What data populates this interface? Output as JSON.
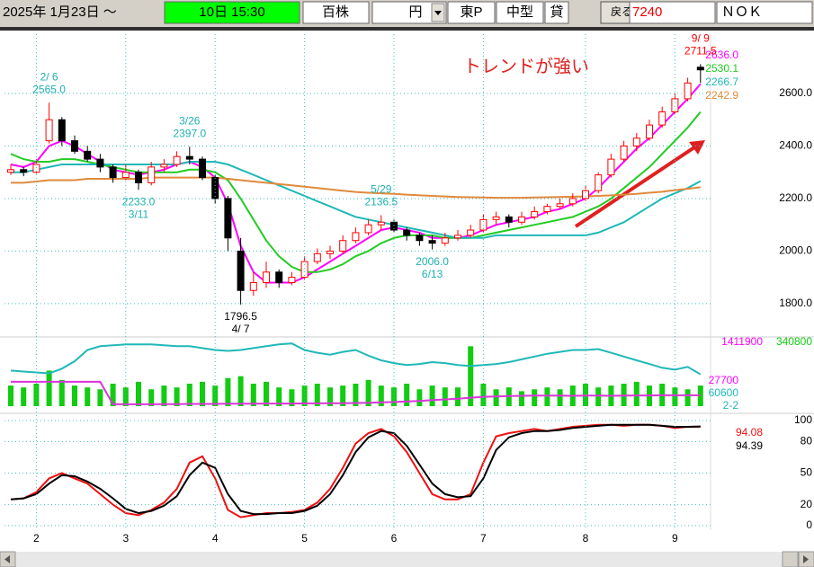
{
  "toolbar": {
    "date": "2025年 1月23日 ～",
    "period": "10日 15:30",
    "unit": "百株",
    "currency": "円",
    "market": "東P",
    "size": "中型",
    "lending": "貸",
    "back": "戻る",
    "code": "7240",
    "name": "ＮＯＫ"
  },
  "chart_data": [
    {
      "type": "candlestick",
      "open": [
        2300,
        2310,
        2300,
        2420,
        2500,
        2420,
        2380,
        2350,
        2320,
        2280,
        2300,
        2260,
        2320,
        2330,
        2360,
        2350,
        2280,
        2200,
        2000,
        1850,
        1880,
        1920,
        1880,
        1900,
        1960,
        1990,
        2000,
        2040,
        2070,
        2100,
        2110,
        2080,
        2060,
        2040,
        2030,
        2050,
        2060,
        2080,
        2120,
        2130,
        2110,
        2130,
        2150,
        2170,
        2180,
        2200,
        2230,
        2290,
        2350,
        2400,
        2430,
        2480,
        2530,
        2580,
        2700
      ],
      "high": [
        2330,
        2320,
        2350,
        2565,
        2510,
        2440,
        2400,
        2370,
        2330,
        2330,
        2310,
        2340,
        2350,
        2380,
        2397,
        2360,
        2290,
        2210,
        2050,
        1920,
        1960,
        1930,
        1920,
        1980,
        2010,
        2020,
        2060,
        2090,
        2120,
        2136.5,
        2120,
        2090,
        2070,
        2060,
        2070,
        2080,
        2100,
        2140,
        2150,
        2140,
        2150,
        2170,
        2180,
        2200,
        2220,
        2250,
        2300,
        2370,
        2420,
        2450,
        2500,
        2550,
        2600,
        2660,
        2711.5
      ],
      "low": [
        2290,
        2285,
        2295,
        2410,
        2400,
        2370,
        2340,
        2300,
        2260,
        2270,
        2233,
        2250,
        2300,
        2320,
        2330,
        2270,
        2180,
        2000,
        1796.5,
        1830,
        1860,
        1860,
        1870,
        1890,
        1950,
        1970,
        1990,
        2030,
        2060,
        2080,
        2070,
        2040,
        2020,
        2006,
        2020,
        2040,
        2050,
        2070,
        2100,
        2090,
        2100,
        2120,
        2140,
        2160,
        2170,
        2190,
        2220,
        2280,
        2340,
        2380,
        2420,
        2470,
        2520,
        2570,
        2640
      ],
      "close": [
        2310,
        2300,
        2330,
        2500,
        2420,
        2380,
        2350,
        2320,
        2280,
        2300,
        2260,
        2320,
        2330,
        2360,
        2350,
        2280,
        2200,
        2050,
        1850,
        1880,
        1920,
        1880,
        1900,
        1960,
        1990,
        2000,
        2040,
        2070,
        2100,
        2110,
        2080,
        2060,
        2040,
        2030,
        2050,
        2060,
        2080,
        2120,
        2130,
        2110,
        2130,
        2150,
        2170,
        2180,
        2200,
        2230,
        2290,
        2350,
        2400,
        2430,
        2480,
        2530,
        2580,
        2640,
        2690
      ],
      "up_color": "#ff0000",
      "down_color": "#000000",
      "series": [
        {
          "name": "2636.0",
          "color": "#ff00ff",
          "values": [
            2330,
            2320,
            2340,
            2400,
            2420,
            2400,
            2370,
            2340,
            2310,
            2300,
            2290,
            2300,
            2310,
            2330,
            2340,
            2320,
            2280,
            2180,
            2020,
            1920,
            1880,
            1880,
            1880,
            1900,
            1930,
            1960,
            1990,
            2020,
            2050,
            2080,
            2090,
            2080,
            2070,
            2050,
            2050,
            2050,
            2060,
            2080,
            2100,
            2110,
            2120,
            2130,
            2150,
            2160,
            2180,
            2200,
            2240,
            2290,
            2340,
            2390,
            2430,
            2480,
            2530,
            2580,
            2636
          ]
        },
        {
          "name": "2530.1",
          "color": "#22cc22",
          "values": [
            2370,
            2350,
            2340,
            2340,
            2350,
            2350,
            2340,
            2330,
            2320,
            2310,
            2300,
            2300,
            2300,
            2300,
            2310,
            2310,
            2300,
            2270,
            2200,
            2120,
            2040,
            1980,
            1940,
            1920,
            1920,
            1930,
            1950,
            1980,
            2000,
            2030,
            2050,
            2060,
            2060,
            2060,
            2050,
            2050,
            2050,
            2060,
            2070,
            2080,
            2090,
            2100,
            2110,
            2120,
            2130,
            2150,
            2170,
            2200,
            2240,
            2280,
            2320,
            2370,
            2420,
            2470,
            2530.1
          ]
        },
        {
          "name": "2266.7",
          "color": "#20b8b8",
          "values": [
            2300,
            2300,
            2310,
            2320,
            2330,
            2330,
            2330,
            2330,
            2330,
            2330,
            2330,
            2330,
            2330,
            2330,
            2340,
            2340,
            2340,
            2330,
            2310,
            2290,
            2270,
            2250,
            2230,
            2210,
            2190,
            2170,
            2150,
            2130,
            2120,
            2110,
            2100,
            2090,
            2080,
            2070,
            2060,
            2050,
            2050,
            2050,
            2060,
            2060,
            2060,
            2060,
            2060,
            2060,
            2060,
            2060,
            2070,
            2090,
            2110,
            2140,
            2170,
            2200,
            2220,
            2240,
            2266.7
          ]
        },
        {
          "name": "2242.9",
          "color": "#e08a3c",
          "values": [
            2260,
            2260,
            2265,
            2270,
            2270,
            2270,
            2275,
            2275,
            2275,
            2275,
            2275,
            2280,
            2280,
            2280,
            2280,
            2280,
            2280,
            2275,
            2270,
            2265,
            2260,
            2255,
            2250,
            2245,
            2240,
            2235,
            2230,
            2225,
            2222,
            2220,
            2218,
            2215,
            2212,
            2210,
            2208,
            2206,
            2205,
            2204,
            2203,
            2203,
            2203,
            2204,
            2205,
            2206,
            2207,
            2208,
            2210,
            2212,
            2215,
            2218,
            2222,
            2226,
            2232,
            2237,
            2242.9
          ]
        }
      ],
      "ylim": [
        1690,
        2826
      ],
      "yticks": [
        {
          "value": 1800,
          "label": "1800.0"
        },
        {
          "value": 2000,
          "label": "2000.0"
        },
        {
          "value": 2200,
          "label": "2200.0"
        },
        {
          "value": 2400,
          "label": "2400.0"
        },
        {
          "value": 2600,
          "label": "2600.0"
        }
      ],
      "grid": true,
      "annotations": [
        {
          "date": "2/ 6",
          "value": 2565,
          "value_label": "2565.0",
          "color": "#20b0b0"
        },
        {
          "date": "3/11",
          "value": 2233,
          "value_label": "2233.0",
          "color": "#20b0b0"
        },
        {
          "date": "3/26",
          "value": 2397,
          "value_label": "2397.0",
          "color": "#20b0b0"
        },
        {
          "date": "4/ 7",
          "value": 1796.5,
          "value_label": "1796.5",
          "color": "#000000"
        },
        {
          "date": "5/29",
          "value": 2136.5,
          "value_label": "2136.5",
          "color": "#20b0b0"
        },
        {
          "date": "6/13",
          "value": 2006,
          "value_label": "2006.0",
          "color": "#20b0b0"
        },
        {
          "date": "9/ 9",
          "value": 2711.5,
          "value_label": "2711.5",
          "color": "#ff0000"
        }
      ],
      "note": "トレンドが強い"
    },
    {
      "type": "bar",
      "values": [
        110000,
        100000,
        120000,
        190000,
        140000,
        110000,
        100000,
        90000,
        120000,
        100000,
        130000,
        90000,
        110000,
        100000,
        120000,
        130000,
        110000,
        150000,
        160000,
        120000,
        130000,
        100000,
        90000,
        110000,
        120000,
        100000,
        110000,
        120000,
        140000,
        110000,
        100000,
        120000,
        90000,
        110000,
        100000,
        100000,
        320000,
        120000,
        90000,
        100000,
        80000,
        90000,
        100000,
        90000,
        110000,
        120000,
        100000,
        110000,
        120000,
        130000,
        110000,
        120000,
        100000,
        90000,
        110000
      ],
      "color": "#11cc11",
      "series": [
        {
          "color": "#20b8b8",
          "values": [
            190000,
            185000,
            180000,
            175000,
            200000,
            240000,
            300000,
            320000,
            325000,
            330000,
            330000,
            330000,
            325000,
            320000,
            320000,
            310000,
            300000,
            295000,
            300000,
            310000,
            320000,
            330000,
            335000,
            300000,
            285000,
            275000,
            290000,
            300000,
            270000,
            245000,
            230000,
            220000,
            225000,
            235000,
            230000,
            220000,
            215000,
            220000,
            225000,
            235000,
            250000,
            265000,
            280000,
            290000,
            300000,
            300000,
            305000,
            285000,
            265000,
            245000,
            225000,
            205000,
            195000,
            210000,
            170000
          ]
        },
        {
          "color": "#dd33dd",
          "values": [
            130000,
            130000,
            130000,
            130000,
            130000,
            130000,
            130000,
            130000,
            10000,
            10000,
            10000,
            10000,
            11000,
            11000,
            12000,
            12000,
            12000,
            13000,
            13000,
            13000,
            14000,
            14000,
            14000,
            15000,
            15000,
            16000,
            16000,
            17000,
            18000,
            20000,
            22000,
            25000,
            28000,
            32000,
            36000,
            40000,
            45000,
            50000,
            52000,
            54000,
            55000,
            56000,
            56000,
            56000,
            55000,
            56000,
            56000,
            55000,
            56000,
            57000,
            57000,
            58000,
            58000,
            58000,
            58000
          ]
        }
      ],
      "ylim": [
        0,
        340800
      ],
      "yticks": [
        340800
      ],
      "scale_labels": [
        {
          "text": "1411900",
          "color": "#ff00ff"
        },
        {
          "text": "27700",
          "color": "#ff00ff"
        },
        {
          "text": "60600",
          "color": "#20b8b8"
        },
        {
          "text": "2-2",
          "color": "#20b8b8"
        }
      ]
    },
    {
      "type": "line",
      "categories": [
        null,
        null,
        "2",
        null,
        null,
        null,
        null,
        null,
        null,
        "3",
        null,
        null,
        null,
        null,
        null,
        null,
        "4",
        null,
        null,
        null,
        null,
        null,
        null,
        "5",
        null,
        null,
        null,
        null,
        null,
        null,
        "6",
        null,
        null,
        null,
        null,
        null,
        null,
        "7",
        null,
        null,
        null,
        null,
        null,
        null,
        null,
        "8",
        null,
        null,
        null,
        null,
        null,
        null,
        "9",
        null,
        null
      ],
      "series": [
        {
          "name": "94.08",
          "color": "#ee1111",
          "values": [
            25,
            26,
            32,
            45,
            50,
            45,
            40,
            30,
            20,
            12,
            10,
            15,
            22,
            35,
            60,
            66,
            45,
            15,
            8,
            10,
            12,
            12,
            13,
            15,
            22,
            35,
            55,
            78,
            88,
            92,
            85,
            70,
            50,
            30,
            25,
            25,
            30,
            60,
            85,
            88,
            90,
            92,
            90,
            92,
            94,
            95,
            96,
            96,
            95,
            96,
            96,
            95,
            93,
            94,
            94.08
          ]
        },
        {
          "name": "94.39",
          "color": "#000000",
          "values": [
            25,
            26,
            30,
            40,
            48,
            47,
            42,
            35,
            26,
            16,
            12,
            14,
            19,
            28,
            48,
            60,
            55,
            30,
            14,
            11,
            11,
            12,
            12,
            14,
            19,
            30,
            48,
            70,
            84,
            90,
            88,
            76,
            58,
            40,
            30,
            27,
            28,
            45,
            72,
            84,
            88,
            90,
            90,
            91,
            93,
            94,
            95,
            96,
            96,
            96,
            96,
            95,
            94,
            94,
            94.39
          ]
        }
      ],
      "ylim": [
        0,
        100
      ],
      "yticks": [
        0,
        20,
        50,
        80,
        100
      ],
      "grid": true
    }
  ]
}
